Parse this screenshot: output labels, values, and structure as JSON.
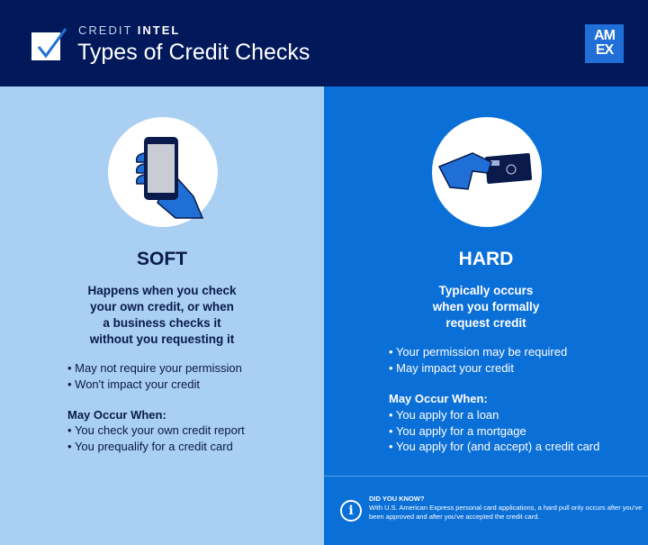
{
  "header": {
    "kicker_light": "CREDIT",
    "kicker_bold": "INTEL",
    "title": "Types of Credit Checks",
    "logo": [
      "AM",
      "EX"
    ]
  },
  "colors": {
    "header": "#01185a",
    "soft_panel": "#a9cff3",
    "hard_panel": "#0b6fd8"
  },
  "soft": {
    "icon": "phone-in-hand-icon",
    "heading": "SOFT",
    "lead": [
      "Happens when you check",
      "your own credit, or when",
      "a business checks it",
      "without you requesting it"
    ],
    "bullets": [
      "May not require your permission",
      "Won't impact your credit"
    ],
    "occur_title": "May Occur When:",
    "occur": [
      "You check your own credit report",
      "You prequalify for a credit card"
    ]
  },
  "hard": {
    "icon": "card-in-hand-icon",
    "heading": "HARD",
    "lead": [
      "Typically occurs",
      "when you formally",
      "request credit"
    ],
    "bullets": [
      "Your permission may be required",
      "May impact your credit"
    ],
    "occur_title": "May Occur When:",
    "occur": [
      "You apply for a loan",
      "You apply for a mortgage",
      "You apply for (and accept) a credit card"
    ]
  },
  "did_you_know": {
    "icon": "info-icon",
    "title": "DID YOU KNOW?",
    "text": "With U.S. American Express personal card applications, a hard pull only occurs after you've been approved and after you've accepted the credit card."
  }
}
